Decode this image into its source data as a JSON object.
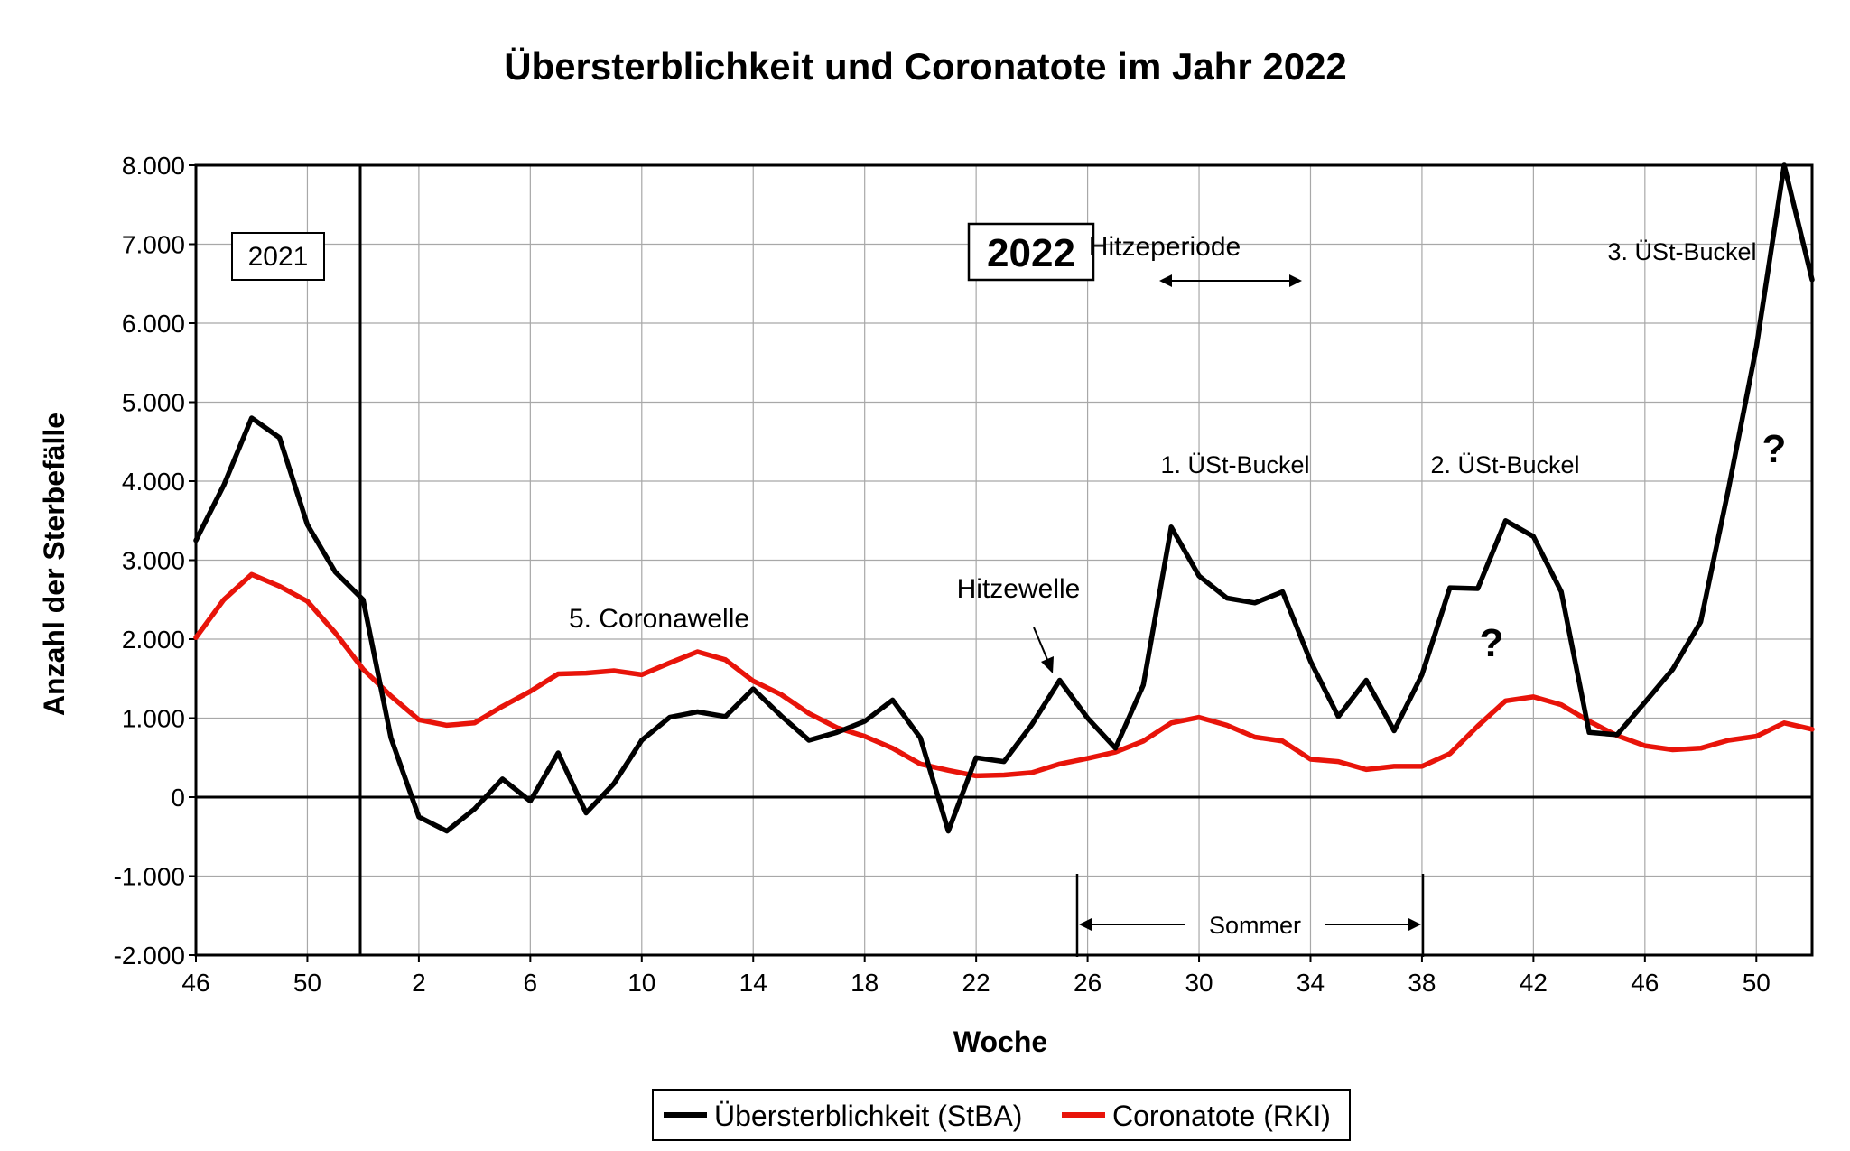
{
  "chart_data": {
    "type": "line",
    "title": "Übersterblichkeit und Coronatote im Jahr 2022",
    "xlabel": "Woche",
    "ylabel": "Anzahl der Sterbefälle",
    "ylim": [
      -2000,
      8000
    ],
    "grid": true,
    "legend_position": "bottom",
    "y_ticks": [
      "-2.000",
      "-1.000",
      "0",
      "1.000",
      "2.000",
      "3.000",
      "4.000",
      "5.000",
      "6.000",
      "7.000",
      "8.000"
    ],
    "x_tick_labels": [
      "46",
      "50",
      "2",
      "6",
      "10",
      "14",
      "18",
      "22",
      "26",
      "30",
      "34",
      "38",
      "42",
      "46",
      "50"
    ],
    "x": [
      "46",
      "47",
      "48",
      "49",
      "50",
      "51",
      "52",
      "1",
      "2",
      "3",
      "4",
      "5",
      "6",
      "7",
      "8",
      "9",
      "10",
      "11",
      "12",
      "13",
      "14",
      "15",
      "16",
      "17",
      "18",
      "19",
      "20",
      "21",
      "22",
      "23",
      "24",
      "25",
      "26",
      "27",
      "28",
      "29",
      "30",
      "31",
      "32",
      "33",
      "34",
      "35",
      "36",
      "37",
      "38",
      "39",
      "40",
      "41",
      "42",
      "43",
      "44",
      "45",
      "46",
      "47",
      "48",
      "49",
      "50",
      "51",
      "52"
    ],
    "series": [
      {
        "name": "Übersterblichkeit (StBA)",
        "color": "#000000",
        "values": [
          3250,
          3950,
          4800,
          4550,
          3450,
          2850,
          2500,
          750,
          -250,
          -430,
          -150,
          230,
          -50,
          560,
          -200,
          170,
          720,
          1010,
          1080,
          1020,
          1370,
          1030,
          720,
          820,
          960,
          1230,
          750,
          -430,
          500,
          450,
          920,
          1480,
          1000,
          620,
          1420,
          3420,
          2800,
          2520,
          2460,
          2600,
          1720,
          1020,
          1480,
          840,
          1550,
          2650,
          2640,
          3500,
          3300,
          2600,
          820,
          790,
          1200,
          1620,
          2220,
          3900,
          5700,
          8000,
          6550
        ]
      },
      {
        "name": "Coronatote (RKI)",
        "color": "#e8140a",
        "values": [
          2020,
          2500,
          2820,
          2670,
          2480,
          2080,
          1620,
          1280,
          980,
          910,
          940,
          1150,
          1340,
          1560,
          1570,
          1600,
          1550,
          1700,
          1840,
          1740,
          1470,
          1300,
          1060,
          880,
          770,
          620,
          420,
          340,
          270,
          280,
          310,
          420,
          490,
          570,
          710,
          940,
          1010,
          910,
          760,
          710,
          480,
          450,
          350,
          390,
          390,
          550,
          900,
          1220,
          1270,
          1170,
          960,
          780,
          650,
          600,
          620,
          720,
          770,
          940,
          860
        ]
      }
    ],
    "annotations": {
      "year_2021": "2021",
      "year_2022": "2022",
      "heat_period": "Hitzeperiode",
      "heat_wave": "Hitzewelle",
      "corona_wave": "5. Coronawelle",
      "bump1": "1. ÜSt-Buckel",
      "bump2": "2. ÜSt-Buckel",
      "bump3": "3. ÜSt-Buckel",
      "question": "?",
      "summer": "Sommer"
    }
  }
}
